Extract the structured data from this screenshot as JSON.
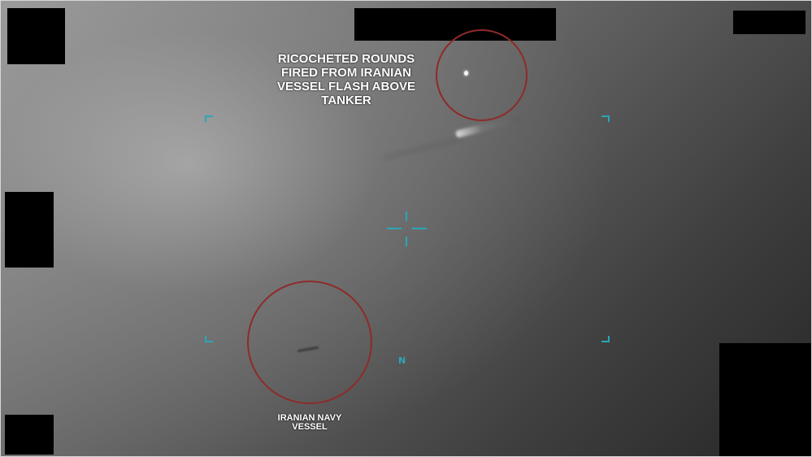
{
  "annotations": {
    "ricochet_caption": "RICOCHETED ROUNDS\nFIRED FROM IRANIAN\nVESSEL FLASH ABOVE\nTANKER",
    "vessel_caption": "IRANIAN NAVY\nVESSEL"
  },
  "hud": {
    "heading_marker": "N"
  },
  "colors": {
    "annotation_ring": "#8f2a2a",
    "hud_reticle": "#2aa6b8",
    "caption_text": "#ffffff",
    "redaction": "#000000"
  }
}
